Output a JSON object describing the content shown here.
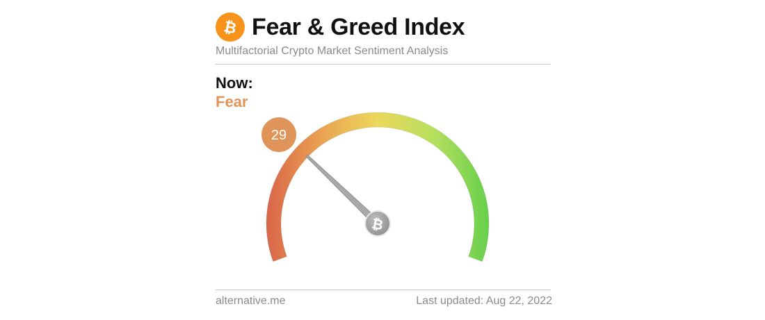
{
  "header": {
    "logo_icon": "bitcoin-icon",
    "logo_color": "#f7931a",
    "title": "Fear & Greed Index",
    "subtitle": "Multifactorial Crypto Market Sentiment Analysis"
  },
  "now": {
    "label": "Now:",
    "classification": "Fear",
    "classification_color": "#e0945a"
  },
  "gauge": {
    "value": 29,
    "value_label": "29",
    "min": 0,
    "max": 100,
    "badge_color": "#e0945a",
    "center_icon": "bitcoin-icon",
    "gradient_colors": [
      "#d9654a",
      "#eaa351",
      "#ecd85c",
      "#b6df5e",
      "#66d04c"
    ]
  },
  "footer": {
    "source": "alternative.me",
    "last_updated": "Last updated: Aug 22, 2022"
  }
}
